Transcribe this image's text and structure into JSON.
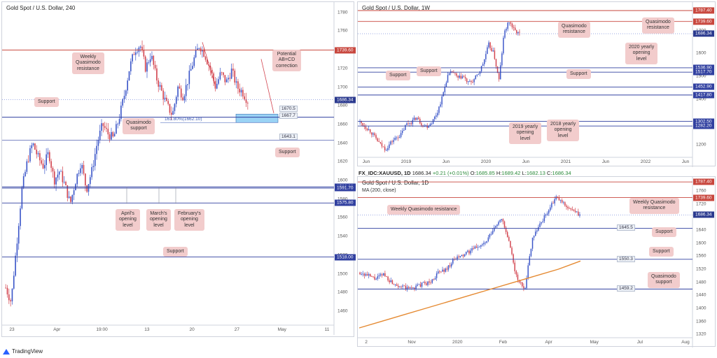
{
  "branding": {
    "name": "TradingView"
  },
  "colors": {
    "up": "#3a55c8",
    "down": "#d2434e",
    "resistance": "#c8473e",
    "support": "#3140a0",
    "ma": "#e58a32",
    "note_bg": "#f2cccc",
    "box": "#9ad3f5"
  },
  "panel1": {
    "title": "Gold Spot / U.S. Dollar, 240",
    "price_tag": "1686.34",
    "levels": [
      {
        "value": 1739.6,
        "label": "1739.60",
        "kind": "resistance"
      },
      {
        "value": 1667.7,
        "label": "",
        "kind": "support"
      },
      {
        "value": 1643.1,
        "label": "",
        "kind": "support_thin"
      },
      {
        "value": 1593.0,
        "label": "1593.00",
        "kind": "support"
      },
      {
        "value": 1591.7,
        "label": "1591.70",
        "kind": "support"
      },
      {
        "value": 1575.8,
        "label": "1575.80",
        "kind": "support"
      },
      {
        "value": 1518.0,
        "label": "1518.00",
        "kind": "support"
      }
    ],
    "box_labels": [
      "1670.5",
      "1667.7",
      "1643.1"
    ],
    "fib_label": "161.80%(1662.10)",
    "notes": {
      "weekly_qm": "Weekly\nQuasimodo\nresistance",
      "potential_abcd": "Potential\nAB=CD\ncorrection",
      "support_left": "Support",
      "qm_support": "Quasimodo\nsupport",
      "support_right": "Support",
      "aprils": "April's\nopening\nlevel",
      "marchs": "March's\nopening\nlevel",
      "februarys": "February's\nopening\nlevel",
      "support_bottom": "Support"
    }
  },
  "panel2": {
    "title": "Gold Spot / U.S. Dollar, 1W",
    "price_tag": "1686.34",
    "levels": [
      {
        "value": 1787.4,
        "label": "1787.40",
        "kind": "resistance"
      },
      {
        "value": 1739.6,
        "label": "1739.60",
        "kind": "resistance"
      },
      {
        "value": 1536.9,
        "label": "1536.90",
        "kind": "support"
      },
      {
        "value": 1517.7,
        "label": "1517.70",
        "kind": "support"
      },
      {
        "value": 1452.9,
        "label": "1452.90",
        "kind": "support"
      },
      {
        "value": 1417.8,
        "label": "1417.80",
        "kind": "support"
      },
      {
        "value": 1302.5,
        "label": "1302.50",
        "kind": "support"
      },
      {
        "value": 1282.2,
        "label": "1282.20",
        "kind": "support"
      }
    ],
    "notes": {
      "qm_res_1": "Quasimodo\nresistance",
      "qm_res_2": "Quasimodo\nresistance",
      "open_2020": "2020 yearly\nopening\nlevel",
      "support_a": "Support",
      "support_b": "Support",
      "support_c": "Support",
      "open_2019": "2019 yearly\nopening\nlevel",
      "open_2018": "2018 yearly\nopening\nlevel"
    }
  },
  "panel3": {
    "title": "Gold Spot / U.S. Dollar, 1D",
    "ma_label": "MA (200, close)",
    "price_tag": "1686.34",
    "infobar": {
      "symbol": "FX_IDC:XAUUSD, 1D",
      "close": "1686.34",
      "change": "+0.21 (+0.01%)",
      "o": "1685.85",
      "h": "1689.42",
      "l": "1682.13",
      "c": "1686.34"
    },
    "levels": [
      {
        "value": 1787.4,
        "label": "1787.40",
        "kind": "resistance"
      },
      {
        "value": 1739.6,
        "label": "1739.60",
        "kind": "resistance"
      },
      {
        "value": 1645.5,
        "label": "1645.5",
        "kind": "support_box"
      },
      {
        "value": 1550.3,
        "label": "1550.3",
        "kind": "support_box"
      },
      {
        "value": 1459.2,
        "label": "1459.2",
        "kind": "support_box"
      }
    ],
    "notes": {
      "weekly_qm_left": "Weekly Quasimodo resistance",
      "weekly_qm_right": "Weekly Quasimodo\nresistance",
      "support_1": "Support",
      "support_2": "Support",
      "qm_support": "Quasimodo\nsupport"
    }
  },
  "chart_data": [
    {
      "type": "candlestick",
      "title": "Gold Spot / U.S. Dollar, 240",
      "x_ticks": [
        "23",
        "Apr",
        "19:00",
        "13",
        "20",
        "27",
        "May",
        "11"
      ],
      "y_ticks": [
        1460,
        1480,
        1500,
        1520,
        1540,
        1560,
        1580,
        1600,
        1620,
        1640,
        1660,
        1680,
        1700,
        1720,
        1740,
        1760,
        1780
      ],
      "ylim": [
        1445,
        1785
      ],
      "path": [
        1485,
        1470,
        1530,
        1590,
        1620,
        1640,
        1625,
        1615,
        1630,
        1600,
        1610,
        1595,
        1575,
        1600,
        1620,
        1590,
        1610,
        1640,
        1660,
        1650,
        1645,
        1665,
        1690,
        1720,
        1740,
        1745,
        1720,
        1735,
        1710,
        1695,
        1680,
        1670,
        1700,
        1690,
        1710,
        1730,
        1745,
        1735,
        1720,
        1700,
        1715,
        1705,
        1718,
        1700,
        1695,
        1685
      ]
    },
    {
      "type": "candlestick",
      "title": "Gold Spot / U.S. Dollar, 1W",
      "x_ticks": [
        "Jun",
        "2019",
        "Jun",
        "2020",
        "Jun",
        "2021",
        "Jun",
        "2022",
        "Jun"
      ],
      "y_ticks": [
        1200,
        1300,
        1400,
        1500,
        1600,
        1700
      ],
      "ylim": [
        1145,
        1800
      ],
      "path": [
        1300,
        1280,
        1260,
        1230,
        1200,
        1180,
        1210,
        1230,
        1245,
        1290,
        1300,
        1320,
        1290,
        1280,
        1300,
        1340,
        1410,
        1500,
        1520,
        1490,
        1500,
        1470,
        1480,
        1510,
        1560,
        1640,
        1600,
        1480,
        1690,
        1740,
        1700,
        1686
      ]
    },
    {
      "type": "candlestick",
      "title": "Gold Spot / U.S. Dollar, 1D",
      "x_ticks": [
        "2",
        "Nov",
        "2020",
        "Feb",
        "Apr",
        "May",
        "Jul",
        "Aug"
      ],
      "y_ticks": [
        1320,
        1360,
        1400,
        1440,
        1480,
        1520,
        1560,
        1600,
        1640,
        1680,
        1720,
        1760
      ],
      "ylim": [
        1310,
        1790
      ],
      "path": [
        1510,
        1500,
        1490,
        1505,
        1480,
        1470,
        1460,
        1465,
        1475,
        1480,
        1510,
        1520,
        1550,
        1560,
        1575,
        1590,
        1600,
        1640,
        1680,
        1600,
        1490,
        1460,
        1620,
        1660,
        1700,
        1740,
        1720,
        1700,
        1686
      ],
      "series": [
        {
          "name": "MA (200, close)",
          "values": [
            1340,
            1360,
            1380,
            1400,
            1420,
            1440,
            1460,
            1480,
            1500,
            1520,
            1545
          ]
        }
      ]
    }
  ]
}
